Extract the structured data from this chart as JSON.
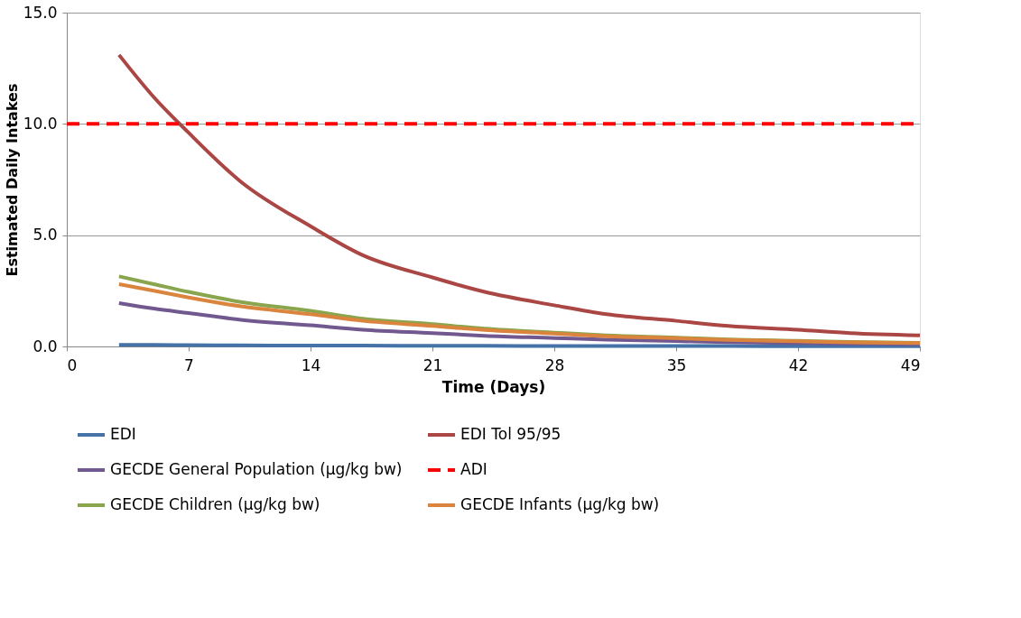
{
  "chart_data": {
    "type": "line",
    "xlabel": "Time (Days)",
    "ylabel": "Estimated Daily Intakes",
    "x": [
      3,
      5,
      7,
      10,
      14,
      17,
      21,
      24,
      28,
      31,
      35,
      38,
      42,
      45,
      49
    ],
    "series": [
      {
        "name": "EDI",
        "color": "#4572a7",
        "values": [
          0.07,
          0.07,
          0.06,
          0.05,
          0.04,
          0.04,
          0.03,
          0.03,
          0.02,
          0.02,
          0.02,
          0.02,
          0.01,
          0.01,
          0.01
        ]
      },
      {
        "name": "EDI Tol 95/95",
        "color": "#aa4643",
        "values": [
          13.1,
          11.2,
          9.6,
          7.4,
          5.4,
          4.1,
          3.1,
          2.45,
          1.85,
          1.45,
          1.15,
          0.92,
          0.75,
          0.6,
          0.5
        ]
      },
      {
        "name": "GECDE General Population (µg/kg bw)",
        "color": "#71588f",
        "values": [
          1.95,
          1.7,
          1.5,
          1.2,
          0.95,
          0.75,
          0.6,
          0.48,
          0.38,
          0.3,
          0.24,
          0.19,
          0.15,
          0.12,
          0.1
        ]
      },
      {
        "name": "ADI",
        "color": "#ff0000",
        "type": "line",
        "line_style": "dashed",
        "x": [
          0,
          49
        ],
        "values": [
          10,
          10
        ]
      },
      {
        "name": "GECDE Children (µg/kg bw)",
        "color": "#89a54e",
        "values": [
          3.15,
          2.8,
          2.45,
          2.0,
          1.6,
          1.25,
          1.0,
          0.8,
          0.62,
          0.5,
          0.4,
          0.31,
          0.25,
          0.2,
          0.16
        ]
      },
      {
        "name": "GECDE Infants (µg/kg bw)",
        "color": "#db843d",
        "values": [
          2.8,
          2.5,
          2.2,
          1.8,
          1.45,
          1.15,
          0.92,
          0.74,
          0.58,
          0.46,
          0.37,
          0.29,
          0.23,
          0.18,
          0.15
        ]
      }
    ],
    "xlim": [
      0,
      49
    ],
    "xticks": [
      0,
      7,
      14,
      21,
      28,
      35,
      42,
      49
    ],
    "ylim": [
      0,
      15
    ],
    "yticks": [
      {
        "value": 0,
        "label": "0.0"
      },
      {
        "value": 5,
        "label": "5.0"
      },
      {
        "value": 10,
        "label": "10.0"
      },
      {
        "value": 15,
        "label": "15.0"
      }
    ],
    "grid": "y",
    "legend": "bottom",
    "line_style": "solid"
  }
}
